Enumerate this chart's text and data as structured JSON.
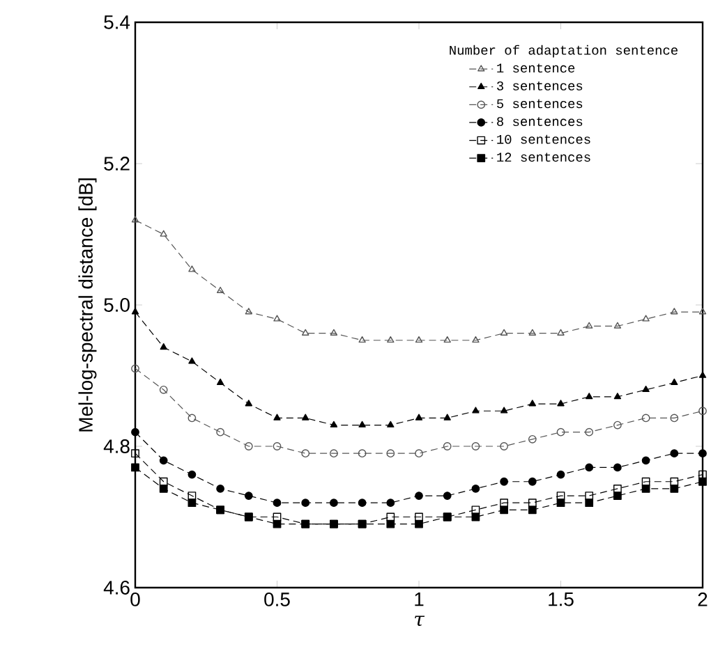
{
  "chart_data": {
    "type": "line",
    "xlabel": "τ",
    "ylabel": "Mel-log-spectral distance [dB]",
    "legend_title": "Number of adaptation sentence",
    "x": [
      0,
      0.1,
      0.2,
      0.3,
      0.4,
      0.5,
      0.6,
      0.7,
      0.8,
      0.9,
      1.0,
      1.1,
      1.2,
      1.3,
      1.4,
      1.5,
      1.6,
      1.7,
      1.8,
      1.9,
      2.0
    ],
    "series": [
      {
        "name": "1 sentence",
        "color": "#555555",
        "marker": "triangle",
        "values": [
          5.12,
          5.1,
          5.05,
          5.02,
          4.99,
          4.98,
          4.96,
          4.96,
          4.95,
          4.95,
          4.95,
          4.95,
          4.95,
          4.96,
          4.96,
          4.96,
          4.97,
          4.97,
          4.98,
          4.99,
          4.99
        ]
      },
      {
        "name": "3 sentences",
        "color": "#000000",
        "marker": "triangle",
        "values": [
          4.99,
          4.94,
          4.92,
          4.89,
          4.86,
          4.84,
          4.84,
          4.83,
          4.83,
          4.83,
          4.84,
          4.84,
          4.85,
          4.85,
          4.86,
          4.86,
          4.87,
          4.87,
          4.88,
          4.89,
          4.9
        ]
      },
      {
        "name": "5 sentences",
        "color": "#555555",
        "marker": "circle",
        "values": [
          4.91,
          4.88,
          4.84,
          4.82,
          4.8,
          4.8,
          4.79,
          4.79,
          4.79,
          4.79,
          4.79,
          4.8,
          4.8,
          4.8,
          4.81,
          4.82,
          4.82,
          4.83,
          4.84,
          4.84,
          4.85
        ]
      },
      {
        "name": "8 sentences",
        "color": "#000000",
        "marker": "circle",
        "values": [
          4.82,
          4.78,
          4.76,
          4.74,
          4.73,
          4.72,
          4.72,
          4.72,
          4.72,
          4.72,
          4.73,
          4.73,
          4.74,
          4.75,
          4.75,
          4.76,
          4.77,
          4.77,
          4.78,
          4.79,
          4.79
        ]
      },
      {
        "name": "10 sentences",
        "color": "#000000",
        "marker": "square",
        "values": [
          4.79,
          4.75,
          4.73,
          4.71,
          4.7,
          4.7,
          4.69,
          4.69,
          4.69,
          4.7,
          4.7,
          4.7,
          4.71,
          4.72,
          4.72,
          4.73,
          4.73,
          4.74,
          4.75,
          4.75,
          4.76
        ]
      },
      {
        "name": "12 sentences",
        "color": "#000000",
        "marker": "square",
        "values": [
          4.77,
          4.74,
          4.72,
          4.71,
          4.7,
          4.69,
          4.69,
          4.69,
          4.69,
          4.69,
          4.69,
          4.7,
          4.7,
          4.71,
          4.71,
          4.72,
          4.72,
          4.73,
          4.74,
          4.74,
          4.75
        ]
      }
    ],
    "xlim": [
      0,
      2
    ],
    "ylim": [
      4.6,
      5.4
    ],
    "xticks": [
      0,
      0.5,
      1,
      1.5,
      2
    ],
    "yticks": [
      4.6,
      4.8,
      {
        "value": 5.0,
        "label": "5.0"
      },
      5.2,
      5.4
    ],
    "grid": false,
    "legend": "top right",
    "line_style": "dashed"
  }
}
